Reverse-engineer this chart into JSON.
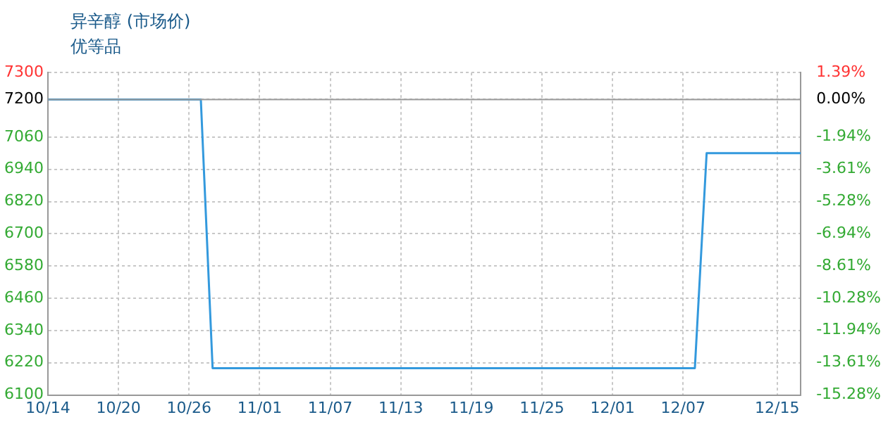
{
  "chart_data": {
    "type": "line",
    "title": "异辛醇 (市场价)",
    "subtitle": "优等品",
    "x": [
      "--10-14",
      "--10-27",
      "--10-28",
      "--12-08",
      "--12-09",
      "--12-17"
    ],
    "series": [
      {
        "color": "#3399dd",
        "values": [
          7200,
          7200,
          6200,
          6200,
          7000,
          7000
        ]
      }
    ],
    "xlim": [
      "--10-14",
      "--12-17"
    ],
    "xticks": [
      {
        "value": "--10-14",
        "label": "10/14"
      },
      {
        "value": "--10-20",
        "label": "10/20"
      },
      {
        "value": "--10-26",
        "label": "10/26"
      },
      {
        "value": "--11-01",
        "label": "11/01"
      },
      {
        "value": "--11-07",
        "label": "11/07"
      },
      {
        "value": "--11-13",
        "label": "11/13"
      },
      {
        "value": "--11-19",
        "label": "11/19"
      },
      {
        "value": "--11-25",
        "label": "11/25"
      },
      {
        "value": "--12-01",
        "label": "12/01"
      },
      {
        "value": "--12-07",
        "label": "12/07"
      },
      {
        "value": "--12-15",
        "label": "12/15"
      }
    ],
    "ylim": [
      6100,
      7300
    ],
    "yticks": [
      6100,
      6220,
      6340,
      6460,
      6580,
      6700,
      6820,
      6940,
      7060,
      7200,
      7300
    ],
    "y2lim": [
      -15.28,
      1.39
    ],
    "y2ticks": [
      {
        "value": -15.28,
        "label": "-15.28%"
      },
      {
        "value": -13.61,
        "label": "-13.61%"
      },
      {
        "value": -11.94,
        "label": "-11.94%"
      },
      {
        "value": -10.28,
        "label": "-10.28%"
      },
      {
        "value": -8.61,
        "label": "-8.61%"
      },
      {
        "value": -6.94,
        "label": "-6.94%"
      },
      {
        "value": -5.28,
        "label": "-5.28%"
      },
      {
        "value": -3.61,
        "label": "-3.61%"
      },
      {
        "value": -1.94,
        "label": "-1.94%"
      },
      {
        "value": 0,
        "label": "0.00%"
      },
      {
        "value": 1.39,
        "label": "1.39%"
      }
    ],
    "ref_lines": [
      {
        "axis": "y",
        "value": 7200,
        "color": "#999999"
      }
    ],
    "grid": true,
    "legend": false,
    "marker": "none",
    "line_style": "solid"
  }
}
